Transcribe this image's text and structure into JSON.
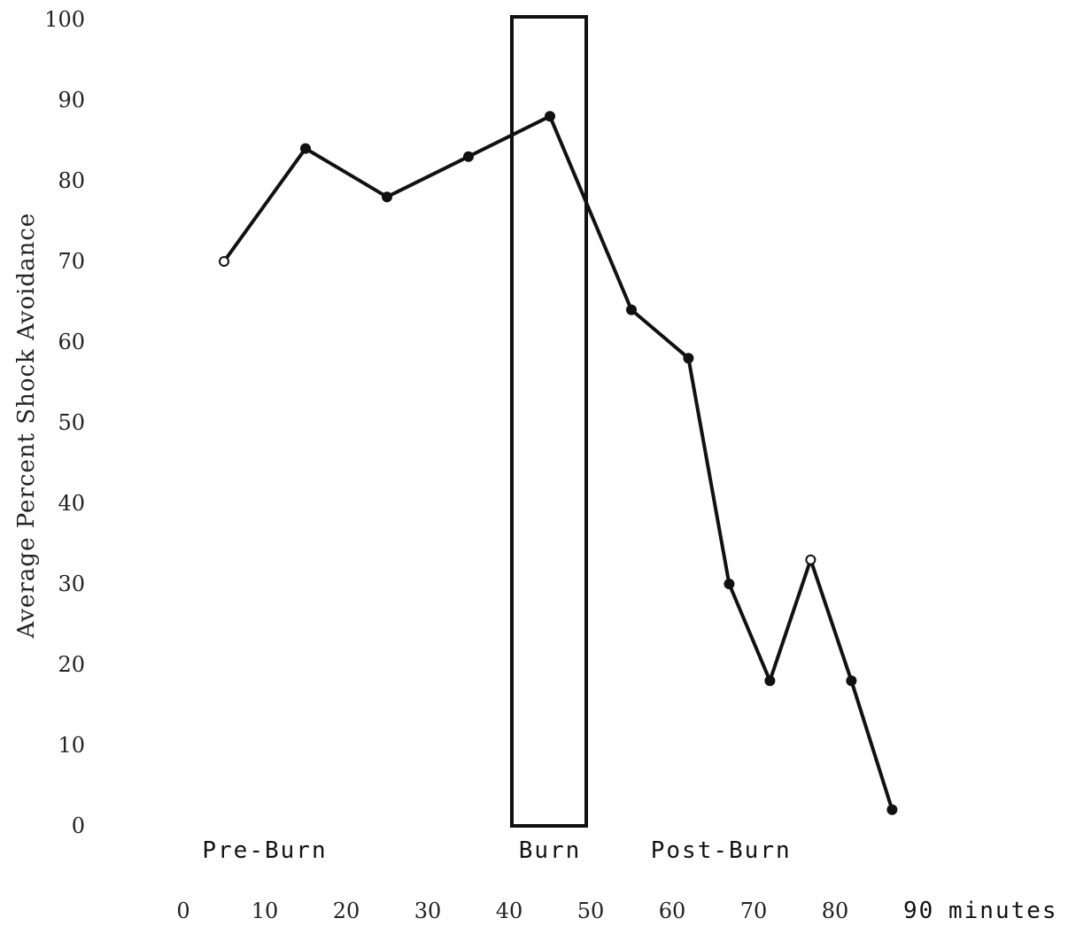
{
  "chart_data": {
    "type": "line",
    "title": "",
    "ylabel": "Average Percent Shock Avoidance",
    "xlabel": "",
    "x_unit_label": "minutes",
    "ylim": [
      0,
      100
    ],
    "xlim": [
      0,
      90
    ],
    "y_ticks": [
      "0",
      "10",
      "20",
      "30",
      "40",
      "50",
      "60",
      "70",
      "80",
      "90",
      "100"
    ],
    "x_ticks": [
      "0",
      "10",
      "20",
      "30",
      "40",
      "50",
      "60",
      "70",
      "80",
      "90"
    ],
    "grid": false,
    "legend": "none",
    "phases": [
      {
        "label": "Pre-Burn",
        "x": 10
      },
      {
        "label": "Burn",
        "x": 45
      },
      {
        "label": "Post-Burn",
        "x": 66
      }
    ],
    "burn_period": [
      40,
      50
    ],
    "series": [
      {
        "x": [
          5,
          15,
          25,
          35,
          45,
          55,
          62,
          67,
          72,
          77,
          82,
          87
        ],
        "y": [
          70,
          84,
          78,
          83,
          88,
          64,
          58,
          30,
          18,
          33,
          18,
          2
        ],
        "marker_style": [
          "open",
          "filled",
          "filled",
          "filled",
          "filled",
          "filled",
          "filled",
          "filled",
          "filled",
          "open",
          "filled",
          "filled"
        ]
      }
    ],
    "colors": {
      "line": "#111111",
      "text": "#222222"
    }
  }
}
